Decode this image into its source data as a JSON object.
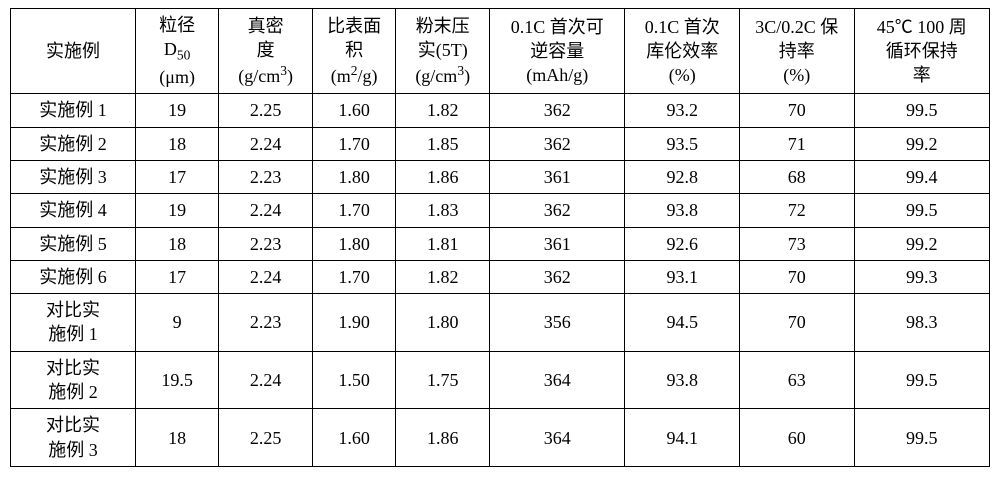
{
  "table": {
    "type": "table",
    "background_color": "#ffffff",
    "border_color": "#000000",
    "text_color": "#000000",
    "header_fontsize": 18,
    "body_fontsize": 18,
    "font_family": "SimSun",
    "column_widths_pct": [
      12,
      8,
      9,
      8,
      9,
      13,
      11,
      11,
      13
    ],
    "column_alignments": [
      "center",
      "center",
      "center",
      "center",
      "center",
      "center",
      "center",
      "center",
      "center"
    ],
    "columns": [
      {
        "line1": "实施例",
        "line2": ""
      },
      {
        "line1": "粒径",
        "line2_pre": "D",
        "line2_sub": "50",
        "line3_pre": "(",
        "line3_unit": "μm",
        "line3_post": ")"
      },
      {
        "line1": "真密",
        "line2": "度",
        "line3_pre": "(g/cm",
        "line3_sup": "3",
        "line3_post": ")"
      },
      {
        "line1": "比表面",
        "line2": "积",
        "line3_pre": "(m",
        "line3_sup": "2",
        "line3_mid": "/g",
        "line3_post": ")"
      },
      {
        "line1": "粉末压",
        "line2": "实(5T)",
        "line3_pre": "(g/cm",
        "line3_sup": "3",
        "line3_post": ")"
      },
      {
        "line1": "0.1C 首次可",
        "line2": "逆容量",
        "line3": "(mAh/g)"
      },
      {
        "line1": "0.1C 首次",
        "line2": "库伦效率",
        "line3": "(%)"
      },
      {
        "line1": "3C/0.2C 保",
        "line2": "持率",
        "line3": "(%)"
      },
      {
        "line1": "45℃ 100 周",
        "line2": "循环保持",
        "line3": "率"
      }
    ],
    "rows": [
      {
        "label": "实施例 1",
        "cells": [
          "19",
          "2.25",
          "1.60",
          "1.82",
          "362",
          "93.2",
          "70",
          "99.5"
        ],
        "tall": false
      },
      {
        "label": "实施例 2",
        "cells": [
          "18",
          "2.24",
          "1.70",
          "1.85",
          "362",
          "93.5",
          "71",
          "99.2"
        ],
        "tall": false
      },
      {
        "label": "实施例 3",
        "cells": [
          "17",
          "2.23",
          "1.80",
          "1.86",
          "361",
          "92.8",
          "68",
          "99.4"
        ],
        "tall": false
      },
      {
        "label": "实施例 4",
        "cells": [
          "19",
          "2.24",
          "1.70",
          "1.83",
          "362",
          "93.8",
          "72",
          "99.5"
        ],
        "tall": false
      },
      {
        "label": "实施例 5",
        "cells": [
          "18",
          "2.23",
          "1.80",
          "1.81",
          "361",
          "92.6",
          "73",
          "99.2"
        ],
        "tall": false
      },
      {
        "label": "实施例 6",
        "cells": [
          "17",
          "2.24",
          "1.70",
          "1.82",
          "362",
          "93.1",
          "70",
          "99.3"
        ],
        "tall": false
      },
      {
        "label_l1": "对比实",
        "label_l2": "施例 1",
        "cells": [
          "9",
          "2.23",
          "1.90",
          "1.80",
          "356",
          "94.5",
          "70",
          "98.3"
        ],
        "tall": true
      },
      {
        "label_l1": "对比实",
        "label_l2": "施例 2",
        "cells": [
          "19.5",
          "2.24",
          "1.50",
          "1.75",
          "364",
          "93.8",
          "63",
          "99.5"
        ],
        "tall": true
      },
      {
        "label_l1": "对比实",
        "label_l2": "施例 3",
        "cells": [
          "18",
          "2.25",
          "1.60",
          "1.86",
          "364",
          "94.1",
          "60",
          "99.5"
        ],
        "tall": true
      }
    ]
  }
}
